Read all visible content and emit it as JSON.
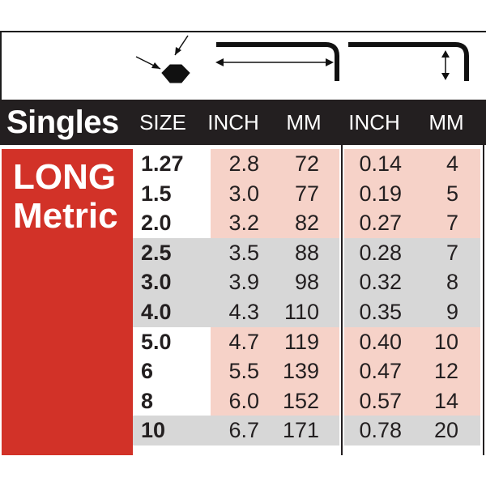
{
  "colors": {
    "dark_band": "#231f20",
    "red_panel": "#d23228",
    "pink_cell": "#f6d2c8",
    "gray_cell": "#d7d7d7",
    "white_cell": "#ffffff"
  },
  "header": {
    "title": "Singles",
    "columns": [
      "SIZE",
      "INCH",
      "MM",
      "INCH",
      "MM"
    ]
  },
  "panel": {
    "line1": "LONG",
    "line2": "Metric"
  },
  "diagram_icons": [
    "hex-key-size-icon",
    "long-arm-length-icon",
    "short-arm-length-icon"
  ],
  "rows": [
    {
      "size": "1.27",
      "inch1": "2.8",
      "mm1": "72",
      "inch2": "0.14",
      "mm2": "4",
      "shade": "pink"
    },
    {
      "size": "1.5",
      "inch1": "3.0",
      "mm1": "77",
      "inch2": "0.19",
      "mm2": "5",
      "shade": "pink"
    },
    {
      "size": "2.0",
      "inch1": "3.2",
      "mm1": "82",
      "inch2": "0.27",
      "mm2": "7",
      "shade": "pink"
    },
    {
      "size": "2.5",
      "inch1": "3.5",
      "mm1": "88",
      "inch2": "0.28",
      "mm2": "7",
      "shade": "gray"
    },
    {
      "size": "3.0",
      "inch1": "3.9",
      "mm1": "98",
      "inch2": "0.32",
      "mm2": "8",
      "shade": "gray"
    },
    {
      "size": "4.0",
      "inch1": "4.3",
      "mm1": "110",
      "inch2": "0.35",
      "mm2": "9",
      "shade": "gray"
    },
    {
      "size": "5.0",
      "inch1": "4.7",
      "mm1": "119",
      "inch2": "0.40",
      "mm2": "10",
      "shade": "pink"
    },
    {
      "size": "6",
      "inch1": "5.5",
      "mm1": "139",
      "inch2": "0.47",
      "mm2": "12",
      "shade": "pink"
    },
    {
      "size": "8",
      "inch1": "6.0",
      "mm1": "152",
      "inch2": "0.57",
      "mm2": "14",
      "shade": "pink"
    },
    {
      "size": "10",
      "inch1": "6.7",
      "mm1": "171",
      "inch2": "0.78",
      "mm2": "20",
      "shade": "gray"
    }
  ]
}
